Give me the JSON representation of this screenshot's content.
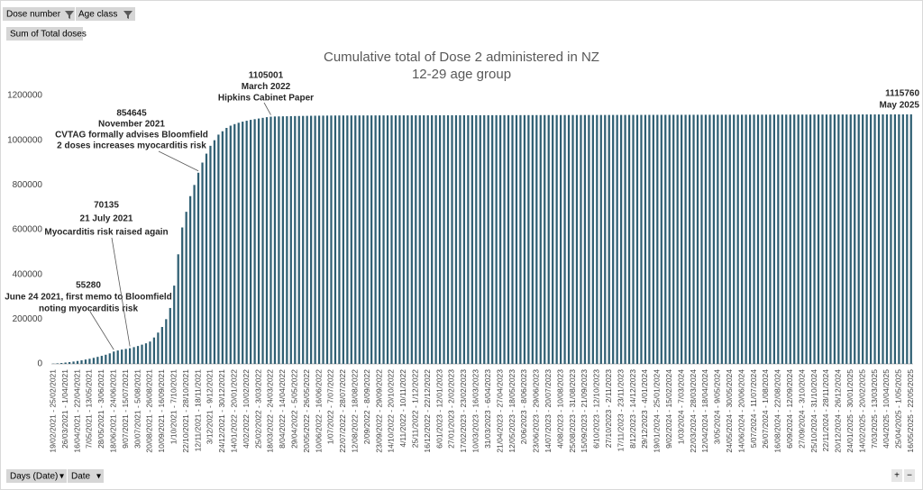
{
  "ui": {
    "filters": [
      "Dose number",
      "Age class"
    ],
    "value_field": "Sum of Total doses",
    "axis_fields": [
      "Days (Date)",
      "Date"
    ],
    "zoom": [
      "+",
      "−"
    ]
  },
  "chart_data": {
    "type": "bar",
    "title": "Cumulative total of Dose 2 administered in NZ",
    "subtitle": "12-29 age group",
    "color": "#2f5f73",
    "ylim": [
      0,
      1200000
    ],
    "yticks": [
      0,
      200000,
      400000,
      600000,
      800000,
      1000000,
      1200000
    ],
    "grid": false,
    "annotations": [
      [
        "55280",
        "June 24 2021, first memo to Bloomfield",
        "noting myocarditis risk"
      ],
      [
        "70135",
        "21 July 2021",
        "Myocarditis risk raised again"
      ],
      [
        "854645",
        "November 2021",
        "CVTAG formally advises Bloomfield",
        "2 doses increases myocarditis risk"
      ],
      [
        "1105001",
        "March 2022",
        "Hipkins Cabinet Paper"
      ],
      [
        "1115760",
        "May 2025"
      ]
    ],
    "categories": [
      "19/02/2021 - 25/02/2021",
      null,
      null,
      "26/03/2021 - 1/04/2021",
      null,
      null,
      "16/04/2021 - 22/04/2021",
      null,
      null,
      "7/05/2021 - 13/05/2021",
      null,
      null,
      "28/05/2021 - 3/06/2021",
      null,
      null,
      "18/06/2021 - 24/06/2021",
      null,
      null,
      "9/07/2021 - 15/07/2021",
      null,
      null,
      "30/07/2021 - 5/08/2021",
      null,
      null,
      "20/08/2021 - 26/08/2021",
      null,
      null,
      "10/09/2021 - 16/09/2021",
      null,
      null,
      "1/10/2021 - 7/10/2021",
      null,
      null,
      "22/10/2021 - 28/10/2021",
      null,
      null,
      "12/11/2021 - 18/11/2021",
      null,
      null,
      "3/12/2021 - 9/12/2021",
      null,
      null,
      "24/12/2021 - 30/12/2021",
      null,
      null,
      "14/01/2022 - 20/01/2022",
      null,
      null,
      "4/02/2022 - 10/02/2022",
      null,
      null,
      "25/02/2022 - 3/03/2022",
      null,
      null,
      "18/03/2022 - 24/03/2022",
      null,
      null,
      "8/04/2022 - 14/04/2022",
      null,
      null,
      "29/04/2022 - 5/05/2022",
      null,
      null,
      "20/05/2022 - 26/05/2022",
      null,
      null,
      "10/06/2022 - 16/06/2022",
      null,
      null,
      "1/07/2022 - 7/07/2022",
      null,
      null,
      "22/07/2022 - 28/07/2022",
      null,
      null,
      "12/08/2022 - 18/08/2022",
      null,
      null,
      "2/09/2022 - 8/09/2022",
      null,
      null,
      "23/09/2022 - 29/09/2022",
      null,
      null,
      "14/10/2022 - 20/10/2022",
      null,
      null,
      "4/11/2022 - 10/11/2022",
      null,
      null,
      "25/11/2022 - 1/12/2022",
      null,
      null,
      "16/12/2022 - 22/12/2022",
      null,
      null,
      "6/01/2023 - 12/01/2023",
      null,
      null,
      "27/01/2023 - 2/02/2023",
      null,
      null,
      "17/02/2023 - 23/02/2023",
      null,
      null,
      "10/03/2023 - 16/03/2023",
      null,
      null,
      "31/03/2023 - 6/04/2023",
      null,
      null,
      "21/04/2023 - 27/04/2023",
      null,
      null,
      "12/05/2023 - 18/05/2023",
      null,
      null,
      "2/06/2023 - 8/06/2023",
      null,
      null,
      "23/06/2023 - 29/06/2023",
      null,
      null,
      "14/07/2023 - 20/07/2023",
      null,
      null,
      "4/08/2023 - 10/08/2023",
      null,
      null,
      "25/08/2023 - 31/08/2023",
      null,
      null,
      "15/09/2023 - 21/09/2023",
      null,
      null,
      "6/10/2023 - 12/10/2023",
      null,
      null,
      "27/10/2023 - 2/11/2023",
      null,
      null,
      "17/11/2023 - 23/11/2023",
      null,
      null,
      "8/12/2023 - 14/12/2023",
      null,
      null,
      "29/12/2023 - 4/01/2024",
      null,
      null,
      "19/01/2024 - 25/01/2024",
      null,
      null,
      "9/02/2024 - 15/02/2024",
      null,
      null,
      "1/03/2024 - 7/03/2024",
      null,
      null,
      "22/03/2024 - 28/03/2024",
      null,
      null,
      "12/04/2024 - 18/04/2024",
      null,
      null,
      "3/05/2024 - 9/05/2024",
      null,
      null,
      "24/05/2024 - 30/05/2024",
      null,
      null,
      "14/06/2024 - 20/06/2024",
      null,
      null,
      "5/07/2024 - 11/07/2024",
      null,
      null,
      "26/07/2024 - 1/08/2024",
      null,
      null,
      "16/08/2024 - 22/08/2024",
      null,
      null,
      "6/09/2024 - 12/09/2024",
      null,
      null,
      "27/09/2024 - 3/10/2024",
      null,
      null,
      "25/10/2024 - 31/10/2024",
      null,
      null,
      "22/11/2024 - 28/11/2024",
      null,
      null,
      "20/12/2024 - 26/12/2024",
      null,
      null,
      "24/01/2025 - 30/01/2025",
      null,
      null,
      "14/02/2025 - 20/02/2025",
      null,
      null,
      "7/03/2025 - 13/03/2025",
      null,
      null,
      "4/04/2025 - 10/04/2025",
      null,
      null,
      "25/04/2025 - 1/05/2025",
      null,
      null,
      "16/05/2025 - 22/05/2025"
    ],
    "values": [
      1000,
      2500,
      4000,
      6000,
      8000,
      10500,
      13000,
      16000,
      19500,
      23000,
      27000,
      31500,
      36000,
      41000,
      47000,
      55280,
      60000,
      64000,
      67000,
      70135,
      75000,
      80000,
      86000,
      92000,
      100000,
      118000,
      140000,
      165000,
      200000,
      250000,
      350000,
      490000,
      610000,
      680000,
      750000,
      800000,
      854645,
      900000,
      940000,
      975000,
      1000000,
      1025000,
      1040000,
      1055000,
      1065000,
      1072000,
      1078000,
      1083000,
      1087000,
      1091000,
      1094000,
      1097000,
      1100000,
      1103000,
      1105001,
      1106000,
      1106400,
      1106800,
      1107200,
      1107600,
      1108000,
      1108300,
      1108600,
      1108900,
      1109200,
      1109500,
      1109700,
      1109900,
      1110100,
      1110300,
      1110500,
      1110600,
      1110635,
      1110670,
      1110705,
      1110740,
      1110775,
      1110810,
      1110845,
      1110880,
      1110915,
      1110950,
      1110985,
      1111020,
      1111055,
      1111090,
      1111125,
      1111160,
      1111195,
      1111230,
      1111265,
      1111300,
      1111335,
      1111370,
      1111405,
      1111440,
      1111475,
      1111510,
      1111545,
      1111580,
      1111615,
      1111650,
      1111685,
      1111720,
      1111755,
      1111790,
      1111825,
      1111860,
      1111895,
      1111930,
      1111965,
      1112000,
      1112035,
      1112070,
      1112105,
      1112140,
      1112175,
      1112210,
      1112245,
      1112280,
      1112315,
      1112350,
      1112385,
      1112420,
      1112455,
      1112490,
      1112525,
      1112560,
      1112595,
      1112630,
      1112665,
      1112700,
      1112735,
      1112770,
      1112805,
      1112840,
      1112875,
      1112910,
      1112945,
      1112980,
      1113015,
      1113050,
      1113085,
      1113120,
      1113155,
      1113190,
      1113225,
      1113260,
      1113295,
      1113330,
      1113365,
      1113400,
      1113435,
      1113470,
      1113505,
      1113540,
      1113575,
      1113610,
      1113645,
      1113680,
      1113715,
      1113750,
      1113785,
      1113820,
      1113855,
      1113890,
      1113925,
      1113960,
      1113995,
      1114030,
      1114065,
      1114100,
      1114135,
      1114170,
      1114205,
      1114240,
      1114275,
      1114310,
      1114345,
      1114380,
      1114415,
      1114450,
      1114485,
      1114520,
      1114555,
      1114590,
      1114625,
      1114660,
      1114695,
      1114730,
      1114765,
      1114800,
      1114835,
      1114870,
      1114905,
      1114940,
      1114975,
      1115010,
      1115045,
      1115080,
      1115115,
      1115150,
      1115185,
      1115220,
      1115255,
      1115290,
      1115325,
      1115360,
      1115395,
      1115430,
      1115465,
      1115500,
      1115535,
      1115760
    ]
  }
}
